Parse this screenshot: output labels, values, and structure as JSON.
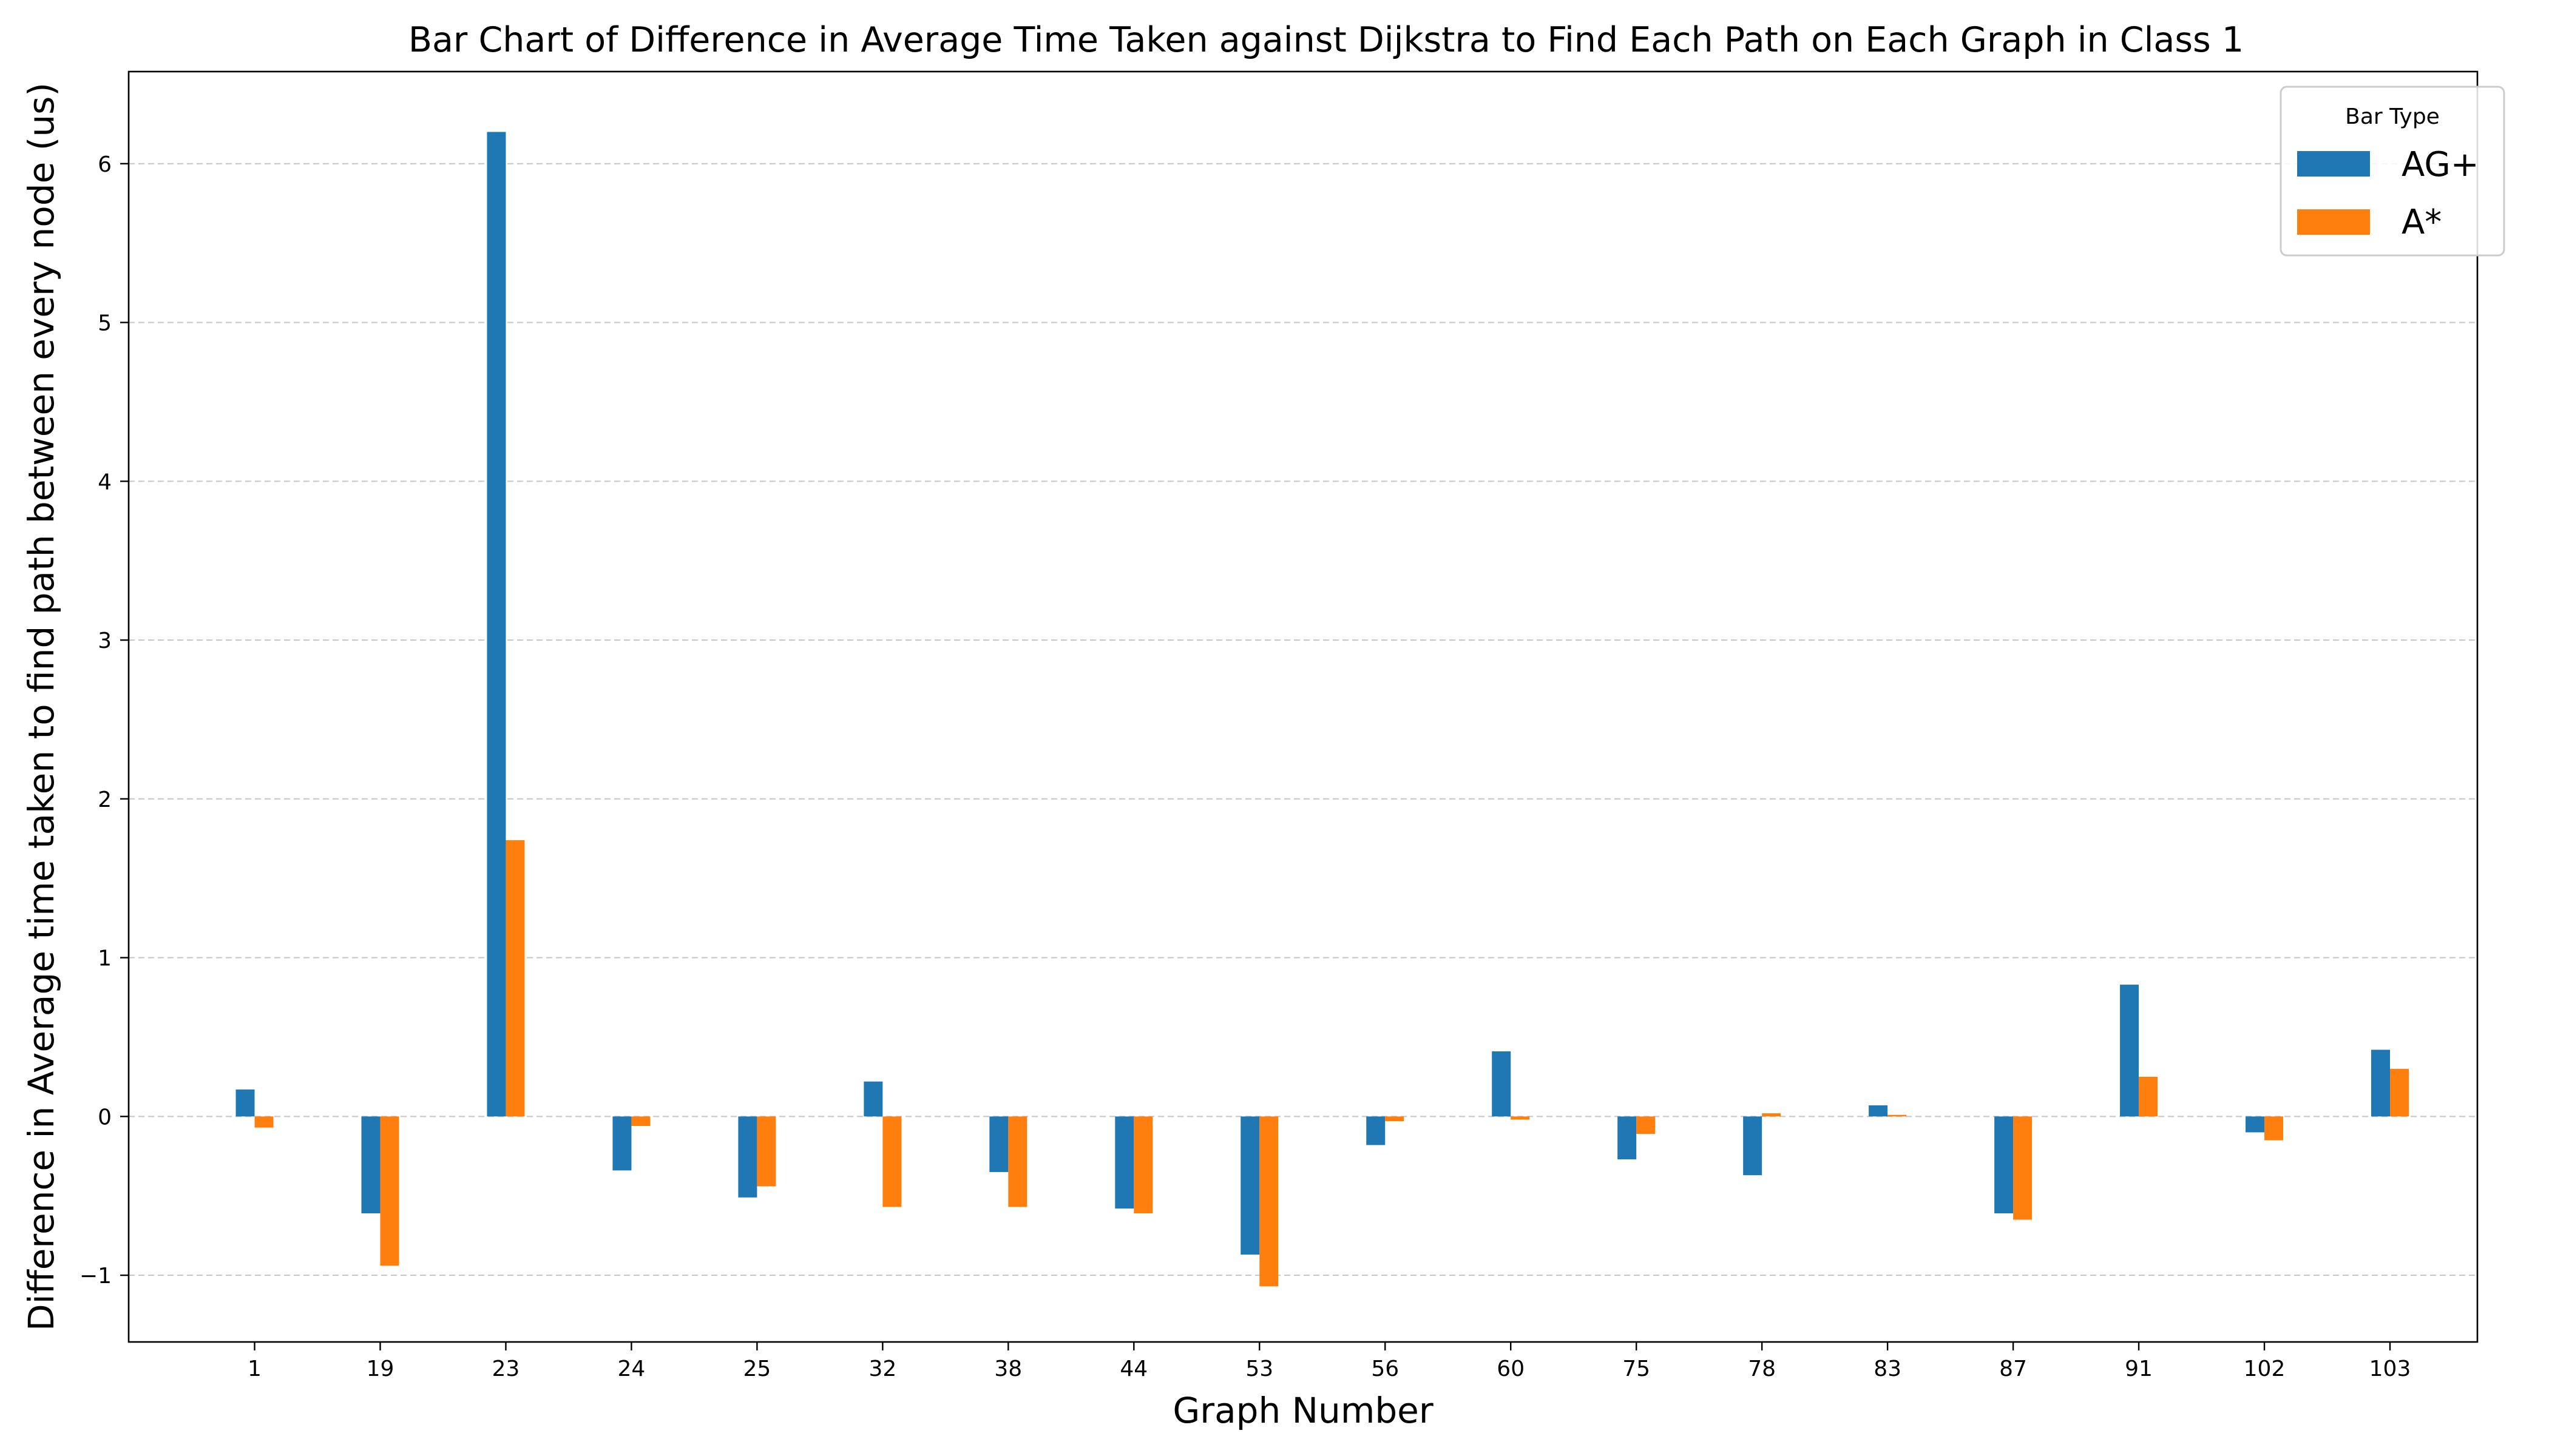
{
  "chart_data": {
    "type": "bar",
    "title": "Bar Chart of Difference in Average Time Taken against Dijkstra to Find Each Path on Each Graph in Class 1",
    "xlabel": "Graph Number",
    "ylabel": "Difference in Average time taken to find path between every node (us)",
    "categories": [
      "1",
      "19",
      "23",
      "24",
      "25",
      "32",
      "38",
      "44",
      "53",
      "56",
      "60",
      "75",
      "78",
      "83",
      "87",
      "91",
      "102",
      "103"
    ],
    "series": [
      {
        "name": "AG+",
        "color": "#1f77b4",
        "values": [
          0.17,
          -0.61,
          6.2,
          -0.34,
          -0.51,
          0.22,
          -0.35,
          -0.58,
          -0.87,
          -0.18,
          0.41,
          -0.27,
          -0.37,
          0.07,
          -0.61,
          0.83,
          -0.1,
          0.42
        ]
      },
      {
        "name": "A*",
        "color": "#ff7f0e",
        "values": [
          -0.07,
          -0.94,
          1.74,
          -0.06,
          -0.44,
          -0.57,
          -0.57,
          -0.61,
          -1.07,
          -0.03,
          -0.02,
          -0.11,
          0.02,
          0.01,
          -0.65,
          0.25,
          -0.15,
          0.3
        ]
      }
    ],
    "ylim": [
      -1.42,
      6.58
    ],
    "yticks": [
      -1,
      0,
      1,
      2,
      3,
      4,
      5,
      6
    ],
    "ytick_labels": [
      "−1",
      "0",
      "1",
      "2",
      "3",
      "4",
      "5",
      "6"
    ],
    "grid": "horizontal-dashed",
    "legend": {
      "title": "Bar Type",
      "position": "top-right"
    }
  }
}
